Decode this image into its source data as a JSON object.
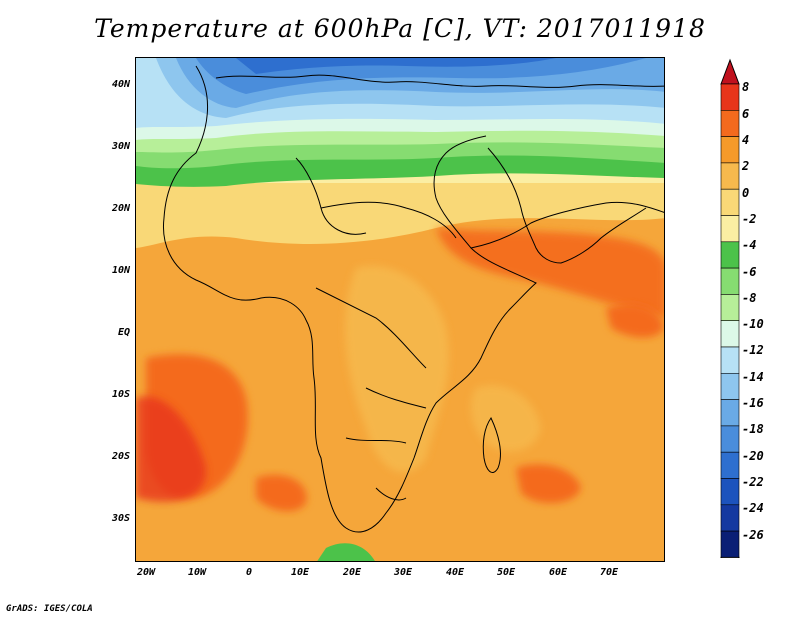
{
  "title": "Temperature at 600hPa [C], VT: 2017011918",
  "map": {
    "lat_labels": [
      "40N",
      "30N",
      "20N",
      "10N",
      "EQ",
      "10S",
      "20S",
      "30S"
    ],
    "lon_labels": [
      "20W",
      "10W",
      "0",
      "10E",
      "20E",
      "30E",
      "40E",
      "50E",
      "60E",
      "70E"
    ],
    "lat_range": [
      -37,
      44
    ],
    "lon_range": [
      -23,
      80
    ]
  },
  "colorbar": {
    "labels": [
      "8",
      "6",
      "4",
      "2",
      "0",
      "-2",
      "-4",
      "-6",
      "-8",
      "-10",
      "-12",
      "-14",
      "-16",
      "-18",
      "-20",
      "-22",
      "-24",
      "-26"
    ],
    "colors": [
      "#e8351b",
      "#f46a1e",
      "#f59a2a",
      "#f6b94d",
      "#f9d877",
      "#fbeea3",
      "#4cc24a",
      "#86dc71",
      "#b7ef99",
      "#dcf8e8",
      "#b7e1f5",
      "#8ec6ee",
      "#6aaae6",
      "#4a8ddb",
      "#2e6fcf",
      "#1c53bd",
      "#1439a0",
      "#0a1f75"
    ],
    "over_color": "#c0111e",
    "under_color": "#e5e0fb"
  },
  "footer": "GrADS: IGES/COLA"
}
